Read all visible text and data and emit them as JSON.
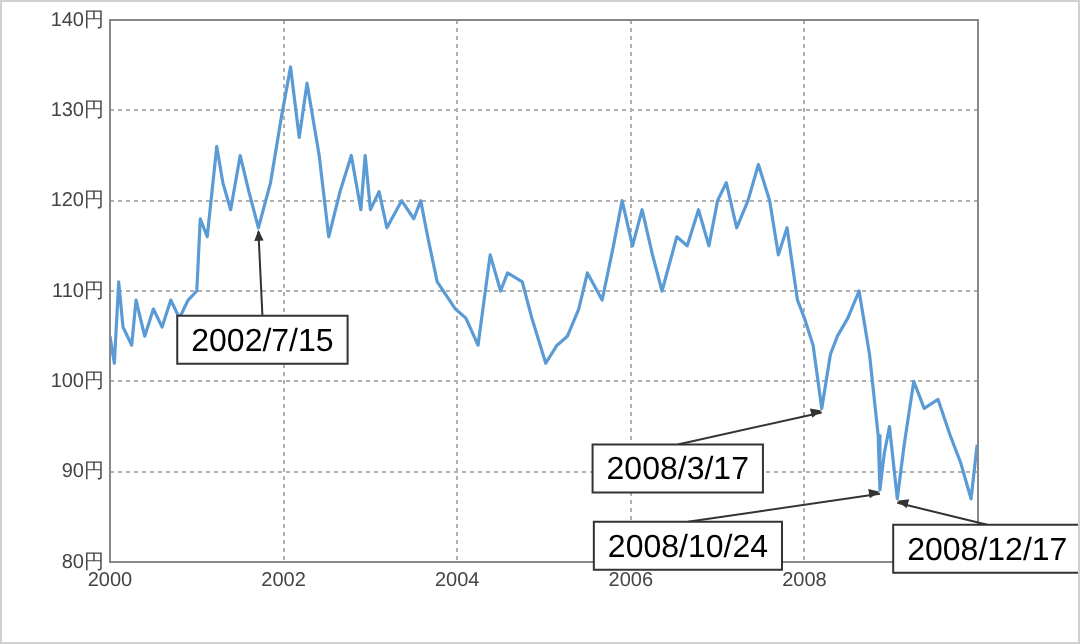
{
  "chart_data": {
    "type": "line",
    "x": [
      2000.0,
      2000.05,
      2000.1,
      2000.15,
      2000.25,
      2000.3,
      2000.4,
      2000.5,
      2000.6,
      2000.7,
      2000.8,
      2000.9,
      2001.0,
      2001.04,
      2001.12,
      2001.23,
      2001.3,
      2001.39,
      2001.5,
      2001.6,
      2001.71,
      2001.85,
      2001.97,
      2002.08,
      2002.18,
      2002.27,
      2002.41,
      2002.52,
      2002.65,
      2002.78,
      2002.89,
      2002.94,
      2003.0,
      2003.1,
      2003.19,
      2003.36,
      2003.5,
      2003.58,
      2003.66,
      2003.77,
      2003.98,
      2004.1,
      2004.24,
      2004.38,
      2004.5,
      2004.58,
      2004.75,
      2004.86,
      2005.02,
      2005.15,
      2005.27,
      2005.4,
      2005.5,
      2005.67,
      2005.8,
      2005.9,
      2006.02,
      2006.13,
      2006.25,
      2006.36,
      2006.53,
      2006.65,
      2006.78,
      2006.9,
      2007.0,
      2007.1,
      2007.22,
      2007.35,
      2007.47,
      2007.6,
      2007.7,
      2007.8,
      2007.92,
      2008.0,
      2008.1,
      2008.2,
      2008.3,
      2008.38,
      2008.5,
      2008.63,
      2008.75,
      2008.85,
      2008.87,
      2008.92,
      2008.98,
      2009.07,
      2009.15,
      2009.26,
      2009.38,
      2009.54,
      2009.68,
      2009.8,
      2009.92,
      2009.99
    ],
    "values": [
      105,
      102,
      111,
      106,
      104,
      109,
      105,
      108,
      106,
      109,
      107,
      109,
      110,
      118,
      116,
      126,
      122,
      119,
      125,
      121,
      117,
      122,
      129,
      134.8,
      127,
      133,
      125,
      116,
      121,
      125,
      119,
      125,
      119,
      121,
      117,
      120,
      118,
      120,
      116,
      111,
      108,
      107,
      104,
      114,
      110,
      112,
      111,
      107,
      102,
      104,
      105,
      108,
      112,
      109,
      115,
      120,
      115,
      119,
      114,
      110,
      116,
      115,
      119,
      115,
      120,
      122,
      117,
      120,
      124,
      120,
      114,
      117,
      109,
      107,
      104,
      97,
      103,
      105,
      107,
      110,
      103,
      94,
      88,
      92,
      95,
      87,
      93,
      100,
      97,
      98,
      94,
      91,
      87,
      93
    ],
    "color": "#5b9bd5",
    "xlim": [
      2000,
      2010
    ],
    "xticks": [
      2000,
      2002,
      2004,
      2006,
      2008
    ],
    "ylim": [
      80,
      140
    ],
    "yticks": [
      {
        "value": 80,
        "label": "80円"
      },
      {
        "value": 90,
        "label": "90円"
      },
      {
        "value": 100,
        "label": "100円"
      },
      {
        "value": 110,
        "label": "110円"
      },
      {
        "value": 120,
        "label": "120円"
      },
      {
        "value": 130,
        "label": "130円"
      },
      {
        "value": 140,
        "label": "140円"
      }
    ],
    "grid": true,
    "annotations": [
      {
        "text": "2002/7/15",
        "x": 2001.71,
        "y": 117
      },
      {
        "text": "2008/3/17",
        "x": 2008.2,
        "y": 97
      },
      {
        "text": "2008/10/24",
        "x": 2008.87,
        "y": 88
      },
      {
        "text": "2008/12/17",
        "x": 2009.07,
        "y": 87
      }
    ]
  }
}
